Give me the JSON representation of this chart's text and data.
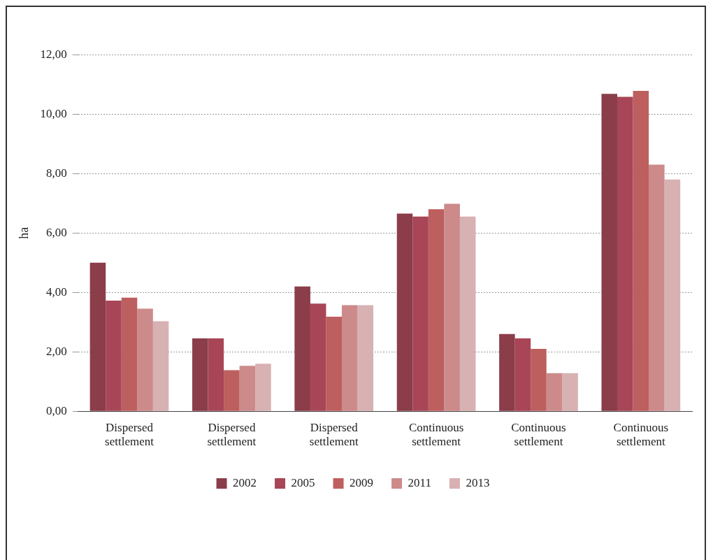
{
  "chart_data": {
    "type": "bar",
    "ylabel": "ha",
    "categories": [
      "Dispersed settlement",
      "Dispersed settlement",
      "Dispersed settlement",
      "Continuous settlement",
      "Continuous settlement",
      "Continuous settlement"
    ],
    "series": [
      {
        "name": "2002",
        "color": "#8b3d4a",
        "values": [
          5.0,
          2.45,
          4.2,
          6.65,
          2.6,
          10.68
        ]
      },
      {
        "name": "2005",
        "color": "#a84556",
        "values": [
          3.72,
          2.45,
          3.62,
          6.55,
          2.45,
          10.58
        ]
      },
      {
        "name": "2009",
        "color": "#bd5f5e",
        "values": [
          3.82,
          1.38,
          3.18,
          6.8,
          2.1,
          10.78
        ]
      },
      {
        "name": "2011",
        "color": "#cc8a8b",
        "values": [
          3.45,
          1.53,
          3.57,
          6.98,
          1.28,
          8.3
        ]
      },
      {
        "name": "2013",
        "color": "#d8b1b3",
        "values": [
          3.03,
          1.6,
          3.57,
          6.55,
          1.28,
          7.8
        ]
      }
    ],
    "ylim": [
      0,
      12
    ],
    "yticks": [
      {
        "value": 0,
        "label": "0,00"
      },
      {
        "value": 2,
        "label": "2,00"
      },
      {
        "value": 4,
        "label": "4,00"
      },
      {
        "value": 6,
        "label": "6,00"
      },
      {
        "value": 8,
        "label": "8,00"
      },
      {
        "value": 10,
        "label": "10,00"
      },
      {
        "value": 12,
        "label": "12,00"
      }
    ],
    "grid": "y",
    "legend": "bottom"
  }
}
